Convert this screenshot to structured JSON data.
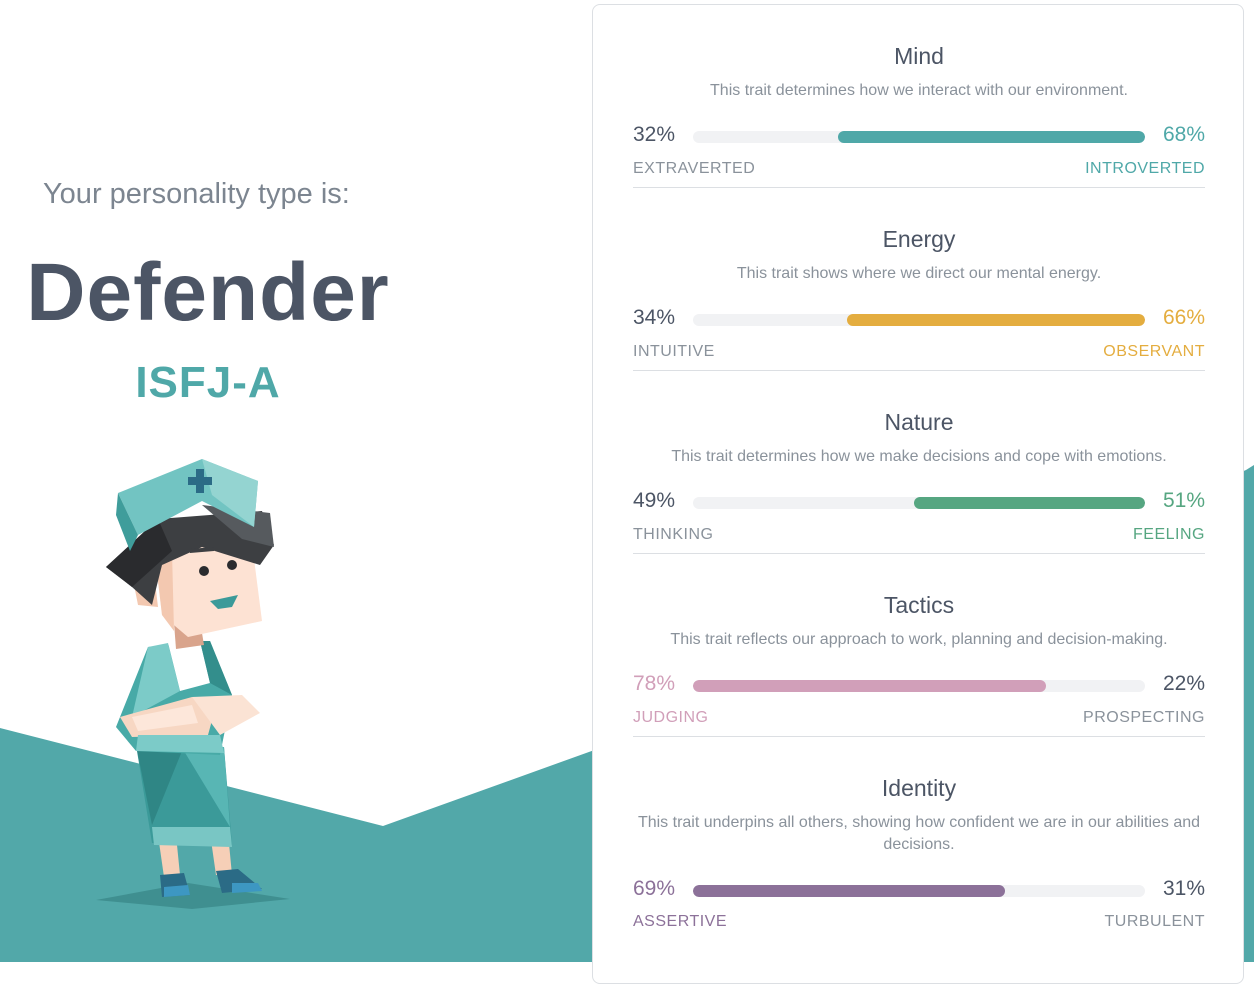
{
  "intro": "Your personality type is:",
  "type_name": "Defender",
  "type_code": "ISFJ-A",
  "colors": {
    "accent": "#4fa8a8",
    "mountain": "#52a8a9"
  },
  "avatar": {
    "icon": "defender-nurse-avatar"
  },
  "traits": [
    {
      "title": "Mind",
      "description": "This trait determines how we interact with our environment.",
      "left_pct": "32%",
      "right_pct": "68%",
      "left_label": "EXTRAVERTED",
      "right_label": "INTROVERTED",
      "dominant": "right",
      "fill": 0.68,
      "color": "#4fa8a8"
    },
    {
      "title": "Energy",
      "description": "This trait shows where we direct our mental energy.",
      "left_pct": "34%",
      "right_pct": "66%",
      "left_label": "INTUITIVE",
      "right_label": "OBSERVANT",
      "dominant": "right",
      "fill": 0.66,
      "color": "#e4ad3f"
    },
    {
      "title": "Nature",
      "description": "This trait determines how we make decisions and cope with emotions.",
      "left_pct": "49%",
      "right_pct": "51%",
      "left_label": "THINKING",
      "right_label": "FEELING",
      "dominant": "right",
      "fill": 0.51,
      "color": "#56a681"
    },
    {
      "title": "Tactics",
      "description": "This trait reflects our approach to work, planning and decision-making.",
      "left_pct": "78%",
      "right_pct": "22%",
      "left_label": "JUDGING",
      "right_label": "PROSPECTING",
      "dominant": "left",
      "fill": 0.78,
      "color": "#d19fb9"
    },
    {
      "title": "Identity",
      "description": "This trait underpins all others, showing how confident we are in our abilities and decisions.",
      "left_pct": "69%",
      "right_pct": "31%",
      "left_label": "ASSERTIVE",
      "right_label": "TURBULENT",
      "dominant": "left",
      "fill": 0.69,
      "color": "#8c7199"
    }
  ]
}
